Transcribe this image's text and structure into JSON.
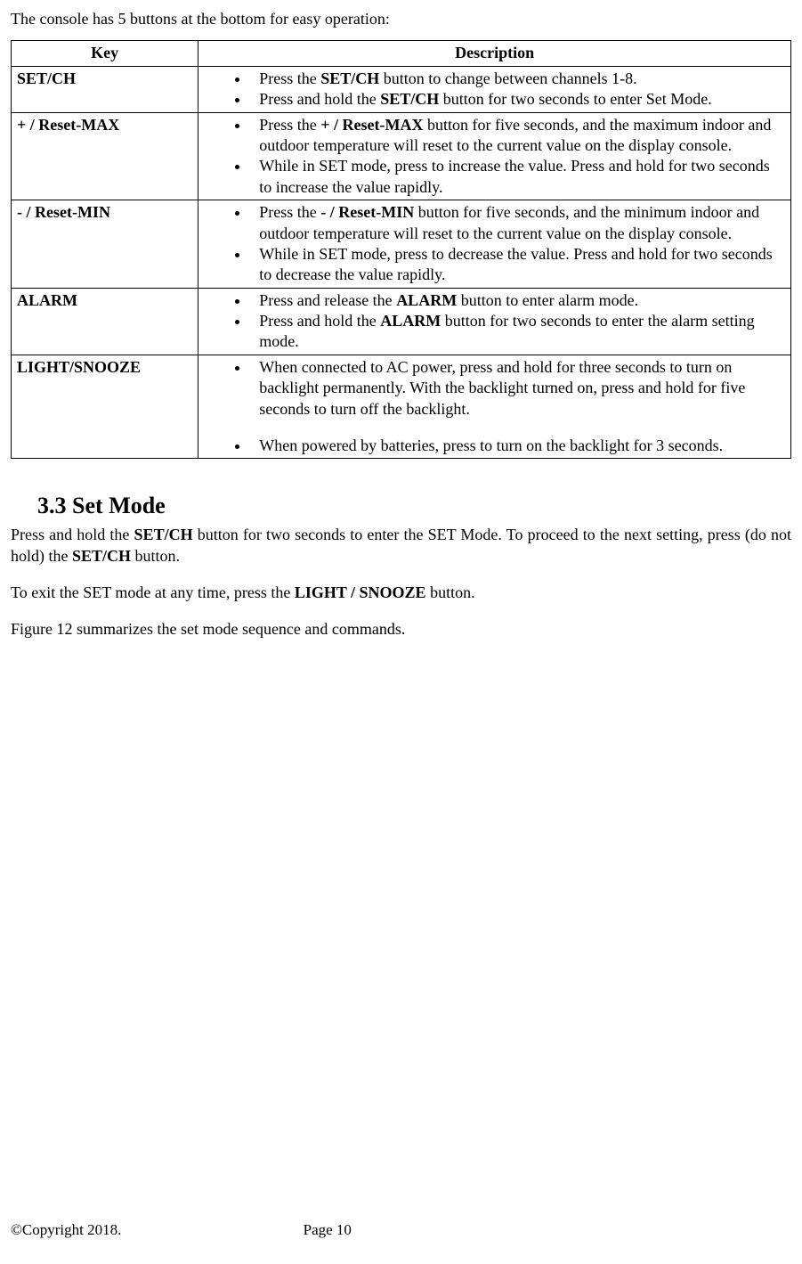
{
  "intro": "The console has 5 buttons at the bottom for easy operation:",
  "table": {
    "headers": {
      "key": "Key",
      "desc": "Description"
    },
    "rows": [
      {
        "key": "SET/CH",
        "items": [
          {
            "pre": "Press the ",
            "bold": "SET/CH",
            "post": " button to change between channels 1-8."
          },
          {
            "pre": "Press and hold the ",
            "bold": "SET/CH",
            "post": " button for two seconds to enter Set Mode."
          }
        ]
      },
      {
        "key": "+ / Reset-MAX",
        "items": [
          {
            "pre": "Press the ",
            "bold": "+ / Reset-MAX",
            "post": " button for five seconds, and the maximum indoor and outdoor temperature will reset to the current value on the display console."
          },
          {
            "pre": "",
            "bold": "",
            "post": "While in SET mode, press to increase the value. Press and hold for two seconds to increase the value rapidly."
          }
        ]
      },
      {
        "key": "- / Reset-MIN",
        "items": [
          {
            "pre": "Press the ",
            "bold": "- / Reset-MIN",
            "post": " button for five seconds, and the minimum indoor and outdoor temperature will reset to the current value on the display console."
          },
          {
            "pre": "",
            "bold": "",
            "post": "While in SET mode, press to decrease the value. Press and hold for two seconds to decrease the value rapidly."
          }
        ]
      },
      {
        "key": "ALARM",
        "items": [
          {
            "pre": "Press and release the ",
            "bold": "ALARM",
            "post": " button to enter alarm mode."
          },
          {
            "pre": "Press and hold the ",
            "bold": "ALARM",
            "post": " button for two seconds to enter the alarm setting mode."
          }
        ]
      },
      {
        "key": "LIGHT/SNOOZE",
        "items": [
          {
            "pre": "",
            "bold": "",
            "post": "When connected to AC power, press and hold for three seconds to turn on backlight permanently. With the backlight turned on, press and hold for five seconds to turn off the backlight."
          },
          {
            "gap": true
          },
          {
            "pre": "",
            "bold": "",
            "post": "When powered by batteries, press to turn on the backlight for 3 seconds."
          }
        ]
      }
    ]
  },
  "section": {
    "heading": "3.3  Set Mode",
    "p1_pre": "Press and hold the ",
    "p1_b1": "SET/CH",
    "p1_mid": " button for two seconds to enter the SET Mode. To proceed to the next setting, press (do not hold) the ",
    "p1_b2": "SET/CH",
    "p1_post": " button.",
    "p2_pre": "To exit the SET mode at any time, press the ",
    "p2_b1": "LIGHT / SNOOZE",
    "p2_post": " button.",
    "p3": "Figure 12 summarizes the set mode sequence and commands."
  },
  "footer": {
    "copyright": "©Copyright 2018.",
    "page": "Page 10"
  }
}
